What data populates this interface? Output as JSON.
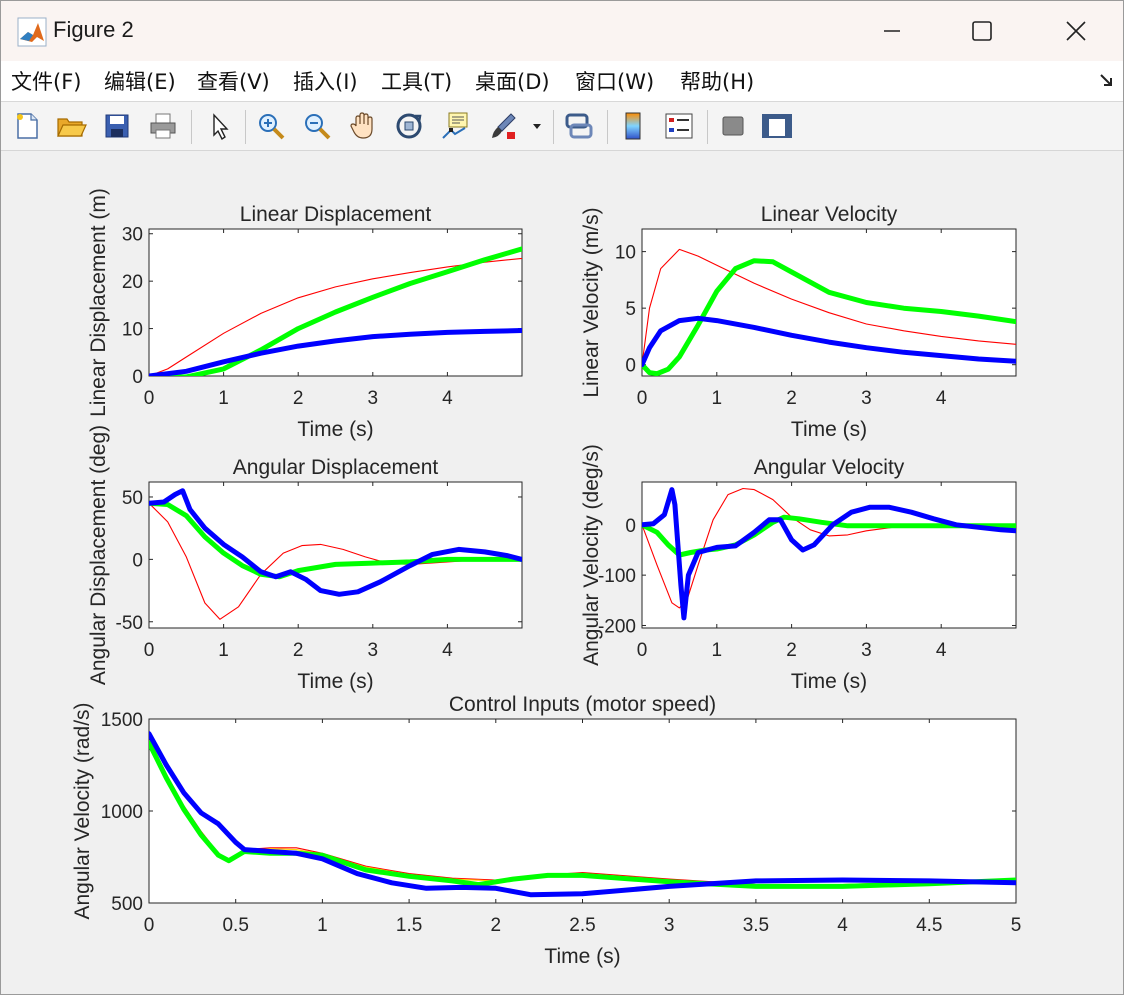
{
  "window": {
    "title": "Figure 2",
    "minimize_label": "—",
    "maximize_label": "☐",
    "close_label": "✕"
  },
  "menu": {
    "items": [
      "文件(F)",
      "编辑(E)",
      "查看(V)",
      "插入(I)",
      "工具(T)",
      "桌面(D)",
      "窗口(W)",
      "帮助(H)"
    ],
    "overflow_icon": "dock-arrow-icon"
  },
  "toolbar": {
    "tools": [
      "new-figure-icon",
      "open-file-icon",
      "save-icon",
      "print-icon",
      "edit-plot-pointer-icon",
      "zoom-in-icon",
      "zoom-out-icon",
      "pan-hand-icon",
      "rotate-3d-icon",
      "data-cursor-icon",
      "brush-icon",
      "dropdown-arrow-icon",
      "link-plot-icon",
      "colorbar-icon",
      "legend-icon",
      "hide-plot-tools-icon",
      "show-plot-tools-icon"
    ]
  },
  "colors": {
    "red": "#ff0000",
    "green": "#00ff00",
    "blue": "#0000ff",
    "axes_bg": "#ffffff",
    "figure_bg": "#f0f0f0"
  },
  "chart_data": [
    {
      "type": "line",
      "title": "Linear Displacement",
      "xlabel": "Time (s)",
      "ylabel": "Linear Displacement (m)",
      "xlim": [
        0,
        5
      ],
      "ylim": [
        0,
        31
      ],
      "xticks": [
        0,
        1,
        2,
        3,
        4
      ],
      "yticks": [
        0,
        10,
        20,
        30
      ],
      "series": [
        {
          "color": "#ff0000",
          "width": "thin",
          "x": [
            0,
            0.25,
            0.5,
            1,
            1.5,
            2,
            2.5,
            3,
            3.5,
            4,
            4.5,
            5
          ],
          "y": [
            0,
            1.5,
            4,
            9,
            13.2,
            16.5,
            18.8,
            20.5,
            21.8,
            23,
            24,
            24.8
          ]
        },
        {
          "color": "#00ff00",
          "width": "thick",
          "x": [
            0,
            0.25,
            0.5,
            1,
            1.5,
            2,
            2.5,
            3,
            3.5,
            4,
            4.5,
            5
          ],
          "y": [
            0,
            -0.3,
            -0.2,
            1.5,
            5.5,
            10,
            13.5,
            16.6,
            19.5,
            22,
            24.5,
            26.8
          ]
        },
        {
          "color": "#0000ff",
          "width": "thick",
          "x": [
            0,
            0.5,
            1,
            1.5,
            2,
            2.5,
            3,
            3.5,
            4,
            4.5,
            5
          ],
          "y": [
            0,
            1,
            3,
            4.8,
            6.3,
            7.4,
            8.3,
            8.8,
            9.2,
            9.4,
            9.6
          ]
        }
      ]
    },
    {
      "type": "line",
      "title": "Linear Velocity",
      "xlabel": "Time (s)",
      "ylabel": "Linear Velocity (m/s)",
      "xlim": [
        0,
        5
      ],
      "ylim": [
        -1,
        12
      ],
      "xticks": [
        0,
        1,
        2,
        3,
        4
      ],
      "yticks": [
        0,
        5,
        10
      ],
      "series": [
        {
          "color": "#ff0000",
          "width": "thin",
          "x": [
            0,
            0.1,
            0.25,
            0.5,
            0.75,
            1,
            1.5,
            2,
            2.5,
            3,
            3.5,
            4,
            4.5,
            5
          ],
          "y": [
            0,
            5,
            8.5,
            10.2,
            9.6,
            8.8,
            7.2,
            5.8,
            4.6,
            3.6,
            3,
            2.5,
            2.1,
            1.8
          ]
        },
        {
          "color": "#00ff00",
          "width": "thick",
          "x": [
            0,
            0.1,
            0.2,
            0.35,
            0.5,
            0.75,
            1,
            1.25,
            1.5,
            1.75,
            2,
            2.5,
            3,
            3.5,
            4,
            4.5,
            5
          ],
          "y": [
            0,
            -0.7,
            -0.8,
            -0.4,
            0.7,
            3.5,
            6.5,
            8.5,
            9.2,
            9.1,
            8.2,
            6.4,
            5.5,
            5,
            4.7,
            4.3,
            3.8
          ]
        },
        {
          "color": "#0000ff",
          "width": "thick",
          "x": [
            0,
            0.1,
            0.25,
            0.5,
            0.75,
            1,
            1.5,
            2,
            2.5,
            3,
            3.5,
            4,
            4.5,
            5
          ],
          "y": [
            0,
            1.5,
            3,
            3.9,
            4.1,
            3.9,
            3.3,
            2.6,
            2,
            1.5,
            1.1,
            0.8,
            0.5,
            0.3
          ]
        }
      ]
    },
    {
      "type": "line",
      "title": "Angular Displacement",
      "xlabel": "Time (s)",
      "ylabel": "Angular Displacement (deg)",
      "xlim": [
        0,
        5
      ],
      "ylim": [
        -55,
        62
      ],
      "xticks": [
        0,
        1,
        2,
        3,
        4
      ],
      "yticks": [
        -50,
        0,
        50
      ],
      "series": [
        {
          "color": "#ff0000",
          "width": "thin",
          "x": [
            0,
            0.25,
            0.5,
            0.75,
            0.95,
            1.2,
            1.5,
            1.8,
            2.05,
            2.3,
            2.6,
            2.9,
            3.2,
            3.5,
            4,
            4.5,
            5
          ],
          "y": [
            45,
            30,
            2,
            -35,
            -48,
            -38,
            -12,
            5,
            11,
            12,
            8,
            2,
            -3,
            -4,
            -2,
            0,
            0
          ]
        },
        {
          "color": "#00ff00",
          "width": "thick",
          "x": [
            0,
            0.25,
            0.5,
            0.75,
            1,
            1.25,
            1.5,
            1.75,
            2,
            2.5,
            3,
            3.5,
            4,
            4.5,
            5
          ],
          "y": [
            45,
            44,
            35,
            18,
            5,
            -5,
            -12,
            -14,
            -9,
            -4,
            -3,
            -2,
            0,
            0,
            0
          ]
        },
        {
          "color": "#0000ff",
          "width": "thick",
          "x": [
            0,
            0.2,
            0.35,
            0.45,
            0.55,
            0.75,
            1,
            1.25,
            1.5,
            1.7,
            1.9,
            2.1,
            2.3,
            2.55,
            2.8,
            3.1,
            3.5,
            3.8,
            4.15,
            4.5,
            4.8,
            5
          ],
          "y": [
            45,
            46,
            52,
            55,
            40,
            25,
            12,
            2,
            -10,
            -14,
            -10,
            -16,
            -25,
            -28,
            -26,
            -18,
            -5,
            4,
            8,
            6,
            3,
            0
          ]
        }
      ]
    },
    {
      "type": "line",
      "title": "Angular Velocity",
      "xlabel": "Time (s)",
      "ylabel": "Angular Velocity (deg/s)",
      "xlim": [
        0,
        5
      ],
      "ylim": [
        -205,
        85
      ],
      "xticks": [
        0,
        1,
        2,
        3,
        4
      ],
      "yticks": [
        -200,
        -100,
        0
      ],
      "series": [
        {
          "color": "#ff0000",
          "width": "thin",
          "x": [
            0,
            0.2,
            0.4,
            0.5,
            0.6,
            0.75,
            0.95,
            1.15,
            1.35,
            1.5,
            1.75,
            2,
            2.25,
            2.5,
            2.75,
            3,
            3.5,
            4,
            4.5,
            5
          ],
          "y": [
            0,
            -80,
            -155,
            -165,
            -150,
            -80,
            10,
            60,
            72,
            70,
            50,
            15,
            -10,
            -22,
            -20,
            -12,
            -2,
            0,
            0,
            0
          ]
        },
        {
          "color": "#00ff00",
          "width": "thick",
          "x": [
            0,
            0.2,
            0.35,
            0.5,
            0.65,
            0.85,
            1,
            1.25,
            1.5,
            1.75,
            1.9,
            2.1,
            2.4,
            2.75,
            3,
            3.5,
            4,
            4.5,
            5
          ],
          "y": [
            0,
            -15,
            -40,
            -60,
            -55,
            -50,
            -48,
            -40,
            -20,
            5,
            15,
            12,
            5,
            -2,
            -2,
            -2,
            -2,
            -2,
            -2
          ]
        },
        {
          "color": "#0000ff",
          "width": "thick",
          "x": [
            0,
            0.15,
            0.3,
            0.4,
            0.44,
            0.48,
            0.52,
            0.56,
            0.62,
            0.75,
            1,
            1.25,
            1.5,
            1.7,
            1.85,
            2,
            2.15,
            2.3,
            2.55,
            2.8,
            3.05,
            3.3,
            3.6,
            3.9,
            4.2,
            4.5,
            4.8,
            5
          ],
          "y": [
            0,
            2,
            20,
            70,
            40,
            -40,
            -120,
            -185,
            -100,
            -55,
            -45,
            -42,
            -15,
            10,
            10,
            -30,
            -50,
            -40,
            0,
            25,
            35,
            35,
            25,
            12,
            0,
            -5,
            -10,
            -12
          ]
        }
      ]
    },
    {
      "type": "line",
      "title": "Control Inputs (motor speed)",
      "xlabel": "Time (s)",
      "ylabel": "Angular Velocity (rad/s)",
      "xlim": [
        0,
        5
      ],
      "ylim": [
        500,
        1500
      ],
      "xticks": [
        0,
        0.5,
        1,
        1.5,
        2,
        2.5,
        3,
        3.5,
        4,
        4.5,
        5
      ],
      "xticklabels": [
        "0",
        "0.5",
        "1",
        "1.5",
        "2",
        "2.5",
        "3",
        "3.5",
        "4",
        "4.5",
        "5"
      ],
      "yticks": [
        500,
        1000,
        1500
      ],
      "series": [
        {
          "color": "#ff0000",
          "width": "thin",
          "x": [
            0,
            0.1,
            0.2,
            0.3,
            0.4,
            0.46,
            0.55,
            0.7,
            0.85,
            1,
            1.25,
            1.5,
            1.75,
            2,
            2.25,
            2.5,
            3,
            3.5,
            4,
            4.5,
            5
          ],
          "y": [
            1380,
            1200,
            1030,
            890,
            770,
            735,
            790,
            800,
            800,
            770,
            700,
            660,
            635,
            625,
            650,
            665,
            630,
            600,
            600,
            615,
            630
          ]
        },
        {
          "color": "#ffd700",
          "width": "thin",
          "x": [
            0,
            0.1,
            0.2,
            0.3,
            0.4,
            0.46,
            0.55,
            0.7,
            0.85,
            1,
            1.25,
            1.5,
            1.75,
            2,
            2.25,
            2.5,
            3,
            3.5,
            4,
            4.5,
            5
          ],
          "y": [
            1375,
            1190,
            1020,
            880,
            760,
            730,
            785,
            795,
            790,
            765,
            695,
            655,
            630,
            620,
            645,
            660,
            625,
            598,
            600,
            612,
            628
          ]
        },
        {
          "color": "#00ff00",
          "width": "thick",
          "x": [
            0,
            0.1,
            0.2,
            0.3,
            0.4,
            0.46,
            0.55,
            0.7,
            0.85,
            1,
            1.25,
            1.5,
            1.75,
            1.9,
            2.1,
            2.3,
            2.5,
            3,
            3.5,
            4,
            4.5,
            5
          ],
          "y": [
            1370,
            1180,
            1010,
            870,
            760,
            730,
            780,
            770,
            770,
            760,
            680,
            645,
            620,
            600,
            630,
            650,
            650,
            615,
            590,
            590,
            605,
            625
          ]
        },
        {
          "color": "#0000ff",
          "width": "thick",
          "x": [
            0,
            0.1,
            0.2,
            0.3,
            0.4,
            0.5,
            0.55,
            0.7,
            0.85,
            1,
            1.2,
            1.4,
            1.6,
            1.8,
            2,
            2.2,
            2.5,
            3,
            3.5,
            4,
            4.5,
            5
          ],
          "y": [
            1420,
            1250,
            1100,
            990,
            930,
            830,
            790,
            780,
            770,
            740,
            660,
            610,
            580,
            585,
            580,
            545,
            550,
            590,
            620,
            625,
            620,
            610
          ]
        }
      ]
    }
  ]
}
